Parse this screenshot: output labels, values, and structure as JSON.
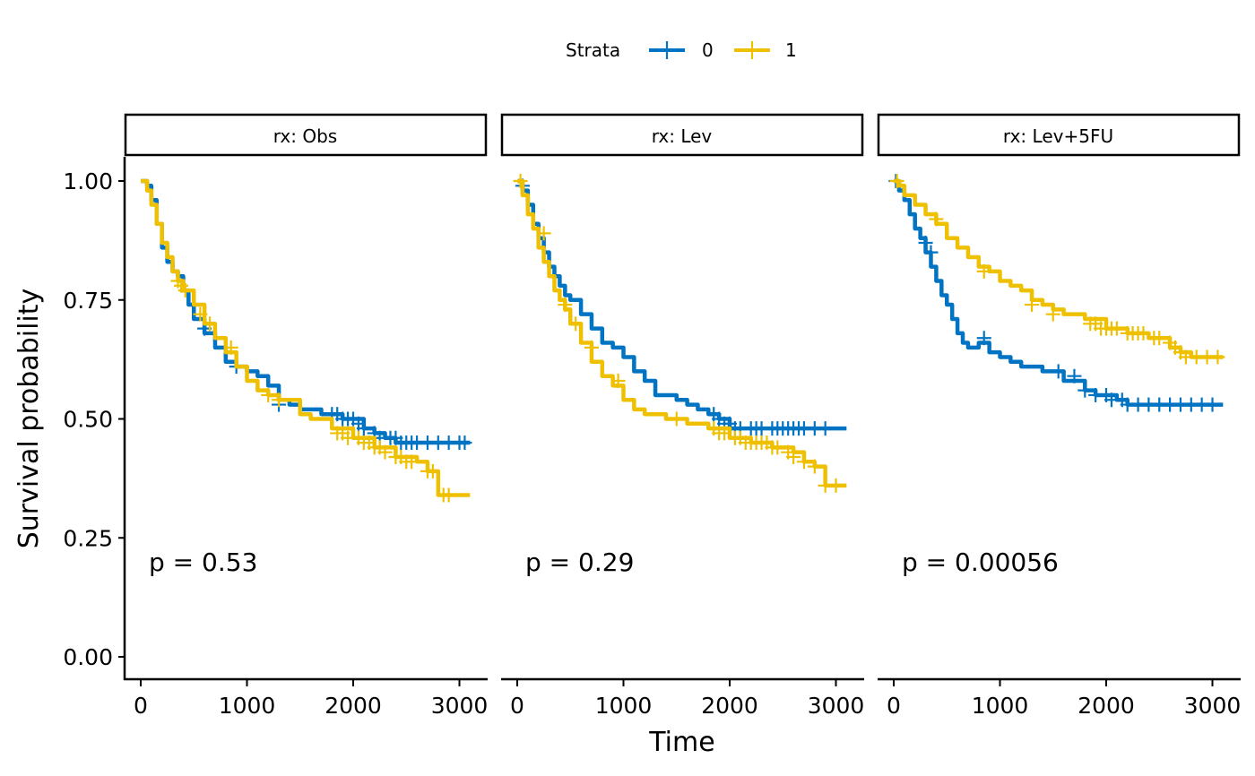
{
  "chart_data": {
    "type": "line",
    "subtype": "kaplan-meier-facet",
    "xlabel": "Time",
    "ylabel": "Survival probability",
    "xlim": [
      0,
      3100
    ],
    "ylim": [
      0,
      1
    ],
    "x_ticks": [
      0,
      1000,
      2000,
      3000
    ],
    "x_tick_labels": [
      "0",
      "1000",
      "2000",
      "3000"
    ],
    "y_ticks": [
      0,
      0.25,
      0.5,
      0.75,
      1.0
    ],
    "y_tick_labels": [
      "0.00",
      "0.25",
      "0.50",
      "0.75",
      "1.00"
    ],
    "grid": false,
    "legend": {
      "title": "Strata",
      "placement": "top",
      "entries": [
        {
          "label": "0",
          "color": "#0073C2"
        },
        {
          "label": "1",
          "color": "#EFC000"
        }
      ]
    },
    "panels": [
      {
        "strip_label": "rx: Obs",
        "pvalue_label": "p = 0.53",
        "series": [
          {
            "name": "0",
            "color": "#0073C2",
            "x": [
              0,
              60,
              100,
              150,
              200,
              250,
              300,
              350,
              400,
              450,
              500,
              600,
              700,
              800,
              900,
              1000,
              1100,
              1200,
              1300,
              1400,
              1500,
              1700,
              1900,
              2100,
              2200,
              2300,
              2400,
              3100
            ],
            "y": [
              1.0,
              0.99,
              0.96,
              0.91,
              0.86,
              0.83,
              0.81,
              0.8,
              0.77,
              0.74,
              0.71,
              0.68,
              0.65,
              0.62,
              0.61,
              0.6,
              0.59,
              0.57,
              0.54,
              0.53,
              0.52,
              0.51,
              0.5,
              0.48,
              0.47,
              0.46,
              0.45,
              0.45
            ],
            "censor_x": [
              600,
              900,
              1300,
              1800,
              1850,
              1900,
              1950,
              2000,
              2050,
              2100,
              2200,
              2250,
              2350,
              2400,
              2450,
              2500,
              2550,
              2600,
              2700,
              2800,
              2900,
              3000,
              3050
            ],
            "censor_y": [
              0.69,
              0.61,
              0.53,
              0.51,
              0.51,
              0.5,
              0.5,
              0.5,
              0.49,
              0.48,
              0.47,
              0.46,
              0.46,
              0.46,
              0.45,
              0.45,
              0.45,
              0.45,
              0.45,
              0.45,
              0.45,
              0.45,
              0.45
            ]
          },
          {
            "name": "1",
            "color": "#EFC000",
            "x": [
              0,
              60,
              100,
              150,
              200,
              250,
              300,
              350,
              400,
              500,
              600,
              700,
              800,
              900,
              1000,
              1100,
              1200,
              1300,
              1400,
              1500,
              1600,
              1800,
              2000,
              2200,
              2400,
              2600,
              2700,
              2800,
              3100
            ],
            "y": [
              1.0,
              0.98,
              0.95,
              0.91,
              0.87,
              0.84,
              0.81,
              0.79,
              0.77,
              0.74,
              0.7,
              0.67,
              0.64,
              0.61,
              0.58,
              0.56,
              0.55,
              0.54,
              0.54,
              0.51,
              0.5,
              0.48,
              0.46,
              0.44,
              0.42,
              0.41,
              0.39,
              0.34,
              0.34
            ],
            "censor_x": [
              350,
              380,
              420,
              560,
              650,
              850,
              1200,
              1300,
              1850,
              1900,
              1950,
              2050,
              2100,
              2150,
              2200,
              2250,
              2300,
              2400,
              2450,
              2500,
              2550,
              2700,
              2750,
              2850,
              2900
            ],
            "censor_y": [
              0.79,
              0.78,
              0.77,
              0.72,
              0.7,
              0.65,
              0.55,
              0.54,
              0.47,
              0.47,
              0.46,
              0.46,
              0.45,
              0.45,
              0.44,
              0.44,
              0.43,
              0.42,
              0.42,
              0.41,
              0.41,
              0.39,
              0.39,
              0.34,
              0.34
            ]
          }
        ]
      },
      {
        "strip_label": "rx: Lev",
        "pvalue_label": "p = 0.29",
        "series": [
          {
            "name": "0",
            "color": "#0073C2",
            "x": [
              0,
              50,
              100,
              150,
              200,
              250,
              300,
              350,
              400,
              450,
              500,
              600,
              700,
              800,
              900,
              1000,
              1100,
              1200,
              1300,
              1500,
              1600,
              1700,
              1800,
              1900,
              2000,
              3100
            ],
            "y": [
              1.0,
              0.98,
              0.95,
              0.91,
              0.88,
              0.85,
              0.82,
              0.8,
              0.78,
              0.76,
              0.75,
              0.72,
              0.69,
              0.66,
              0.65,
              0.63,
              0.6,
              0.58,
              0.55,
              0.54,
              0.53,
              0.52,
              0.51,
              0.5,
              0.48,
              0.48
            ],
            "censor_x": [
              50,
              1850,
              1900,
              1950,
              2000,
              2050,
              2100,
              2200,
              2250,
              2300,
              2400,
              2450,
              2500,
              2550,
              2600,
              2650,
              2700,
              2800,
              2900
            ],
            "censor_y": [
              0.99,
              0.51,
              0.5,
              0.49,
              0.49,
              0.48,
              0.48,
              0.48,
              0.48,
              0.48,
              0.48,
              0.48,
              0.48,
              0.48,
              0.48,
              0.48,
              0.48,
              0.48,
              0.48
            ]
          },
          {
            "name": "1",
            "color": "#EFC000",
            "x": [
              0,
              50,
              100,
              150,
              200,
              250,
              300,
              350,
              400,
              450,
              500,
              600,
              700,
              800,
              900,
              1000,
              1100,
              1200,
              1400,
              1600,
              1800,
              2000,
              2200,
              2400,
              2600,
              2700,
              2800,
              2900,
              3100
            ],
            "y": [
              1.0,
              0.97,
              0.93,
              0.9,
              0.86,
              0.83,
              0.8,
              0.77,
              0.75,
              0.73,
              0.7,
              0.66,
              0.62,
              0.59,
              0.57,
              0.54,
              0.52,
              0.51,
              0.5,
              0.49,
              0.48,
              0.46,
              0.45,
              0.44,
              0.43,
              0.41,
              0.4,
              0.36,
              0.36
            ],
            "censor_x": [
              30,
              250,
              450,
              550,
              700,
              950,
              1500,
              1850,
              1900,
              1950,
              2050,
              2100,
              2150,
              2200,
              2250,
              2300,
              2350,
              2400,
              2450,
              2550,
              2600,
              2700,
              2800,
              2900,
              3000
            ],
            "censor_y": [
              1.0,
              0.89,
              0.74,
              0.7,
              0.65,
              0.58,
              0.5,
              0.48,
              0.47,
              0.47,
              0.46,
              0.46,
              0.45,
              0.45,
              0.45,
              0.45,
              0.45,
              0.44,
              0.44,
              0.43,
              0.42,
              0.41,
              0.4,
              0.36,
              0.36
            ]
          }
        ]
      },
      {
        "strip_label": "rx: Lev+5FU",
        "pvalue_label": "p = 0.00056",
        "series": [
          {
            "name": "0",
            "color": "#0073C2",
            "x": [
              0,
              50,
              100,
              150,
              200,
              250,
              300,
              350,
              400,
              450,
              500,
              550,
              600,
              650,
              700,
              800,
              900,
              1000,
              1100,
              1200,
              1400,
              1600,
              1800,
              1900,
              2000,
              2100,
              2200,
              3100
            ],
            "y": [
              1.0,
              0.98,
              0.96,
              0.93,
              0.9,
              0.88,
              0.85,
              0.82,
              0.79,
              0.76,
              0.74,
              0.71,
              0.68,
              0.66,
              0.65,
              0.66,
              0.64,
              0.63,
              0.62,
              0.61,
              0.6,
              0.58,
              0.56,
              0.55,
              0.55,
              0.54,
              0.53,
              0.53
            ],
            "censor_x": [
              20,
              300,
              350,
              850,
              1550,
              1700,
              1800,
              1900,
              2000,
              2050,
              2150,
              2200,
              2300,
              2400,
              2500,
              2600,
              2700,
              2800,
              2900,
              3000
            ],
            "censor_y": [
              1.0,
              0.87,
              0.85,
              0.67,
              0.6,
              0.59,
              0.56,
              0.55,
              0.55,
              0.54,
              0.54,
              0.53,
              0.53,
              0.53,
              0.53,
              0.53,
              0.53,
              0.53,
              0.53,
              0.53
            ]
          },
          {
            "name": "1",
            "color": "#EFC000",
            "x": [
              0,
              50,
              100,
              200,
              300,
              400,
              500,
              600,
              700,
              800,
              900,
              1000,
              1100,
              1200,
              1300,
              1400,
              1500,
              1600,
              1800,
              2000,
              2200,
              2400,
              2600,
              2700,
              2800,
              3100
            ],
            "y": [
              1.0,
              0.99,
              0.97,
              0.95,
              0.93,
              0.91,
              0.88,
              0.86,
              0.84,
              0.82,
              0.81,
              0.79,
              0.78,
              0.77,
              0.75,
              0.74,
              0.73,
              0.72,
              0.71,
              0.69,
              0.68,
              0.67,
              0.65,
              0.64,
              0.63,
              0.63
            ],
            "censor_x": [
              30,
              400,
              850,
              1300,
              1500,
              1850,
              1900,
              1950,
              2000,
              2050,
              2100,
              2200,
              2250,
              2300,
              2350,
              2450,
              2500,
              2600,
              2650,
              2700,
              2750,
              2850,
              2950,
              3050
            ],
            "censor_y": [
              1.0,
              0.92,
              0.81,
              0.74,
              0.72,
              0.7,
              0.7,
              0.69,
              0.69,
              0.69,
              0.69,
              0.68,
              0.68,
              0.68,
              0.68,
              0.67,
              0.67,
              0.66,
              0.65,
              0.64,
              0.63,
              0.63,
              0.63,
              0.63
            ]
          }
        ]
      }
    ]
  }
}
